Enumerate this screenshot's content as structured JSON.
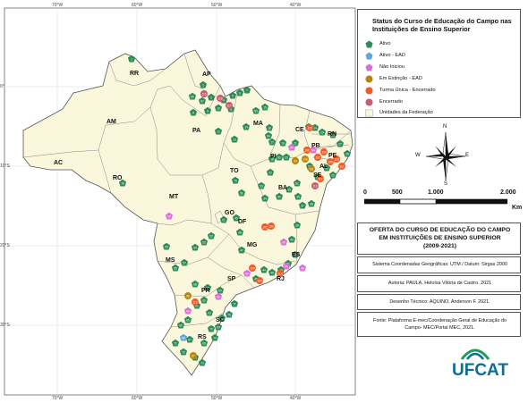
{
  "map": {
    "lon_ticks": [
      "70°W",
      "60°W",
      "50°W",
      "40°W"
    ],
    "lat_ticks": [
      "0°",
      "10°S",
      "20°S",
      "30°S"
    ],
    "state_labels": [
      "RR",
      "AP",
      "AM",
      "PA",
      "MA",
      "CE",
      "RN",
      "PB",
      "PE",
      "AL",
      "SE",
      "PI",
      "AC",
      "RO",
      "TO",
      "BA",
      "MT",
      "GO",
      "DF",
      "MG",
      "ES",
      "MS",
      "SP",
      "RJ",
      "PR",
      "SC",
      "RS"
    ]
  },
  "legend": {
    "title": "Status do Curso de Educação do Campo nas Instituições de Ensino Superior",
    "items": [
      {
        "label": "Ativo",
        "color": "#2e8b57",
        "shape": "pentagon"
      },
      {
        "label": "Ativo - EAD",
        "color": "#5aa8d8",
        "shape": "pentagon"
      },
      {
        "label": "Não Iniciou",
        "color": "#da70d6",
        "shape": "pentagon"
      },
      {
        "label": "Em Extinção - EAD",
        "color": "#b8860b",
        "shape": "circle"
      },
      {
        "label": "Turma Única - Encerrado",
        "color": "#f05a28",
        "shape": "circle"
      },
      {
        "label": "Encerrado",
        "color": "#c85a74",
        "shape": "circle"
      },
      {
        "label": "Unidades da Federação",
        "color": "#fbf7dc",
        "shape": "rect"
      }
    ]
  },
  "compass": {
    "n": "N",
    "s": "S",
    "e": "E",
    "w": "W"
  },
  "scale": {
    "labels": [
      "0",
      "500",
      "1.000",
      "2.000"
    ],
    "unit": "Km"
  },
  "info": {
    "title_line1": "OFERTA DO CURSO DE EDUCAÇÃO DO CAMPO",
    "title_line2": "EM INSTITUIÇÕES DE ENSINO SUPERIOR",
    "title_line3": "(2009-2021)",
    "crs": "Sistema Coordenadas Geográficas: UTM / Datum: Sirgas 2000",
    "authors": "Autoria: PAULA, Heloísa Vitória de Castro. 2021",
    "drawing": "Desenho Técnico: AQUINO, Anderson F. 2021.",
    "source_line1": "Fonte: Plataforma E-mec/Coordenação Geral de Educação do",
    "source_line2": "Campo- MEC/Portal MEC, 2021."
  },
  "brand": "UFCAT",
  "markers_by_status": {
    "Ativo": [
      "1",
      "2",
      "3",
      "4",
      "5",
      "6",
      "7",
      "8",
      "9",
      "10",
      "11",
      "12",
      "13",
      "14",
      "15",
      "16",
      "17",
      "18",
      "19",
      "20",
      "21",
      "23",
      "24",
      "25",
      "26",
      "27",
      "28",
      "29",
      "30",
      "31",
      "32",
      "33",
      "34",
      "35",
      "36",
      "37",
      "38",
      "39",
      "40",
      "41",
      "42",
      "43",
      "44",
      "45",
      "46",
      "47",
      "48",
      "49",
      "50",
      "51",
      "52",
      "53",
      "54",
      "55",
      "56",
      "57",
      "58",
      "59",
      "60",
      "61",
      "62",
      "63",
      "64",
      "65",
      "66",
      "67",
      "68",
      "69",
      "70",
      "71",
      "72",
      "73",
      "74",
      "75",
      "76",
      "77",
      "78",
      "79",
      "80",
      "81",
      "82",
      "83",
      "84",
      "85",
      "86",
      "87"
    ],
    "Ativo - EAD": [
      "88"
    ],
    "Não Iniciou": [
      "22",
      "89",
      "90",
      "91",
      "92",
      "93",
      "94",
      "95",
      "96"
    ],
    "Em Extinção - EAD": [
      "97",
      "98",
      "99",
      "100",
      "101"
    ],
    "Turma Única - Encerrado": [
      "102",
      "103",
      "104",
      "105",
      "106",
      "107",
      "108",
      "109",
      "110",
      "111",
      "112",
      "113",
      "114",
      "115"
    ],
    "Encerrado": [
      "116",
      "117",
      "118",
      "119"
    ]
  }
}
